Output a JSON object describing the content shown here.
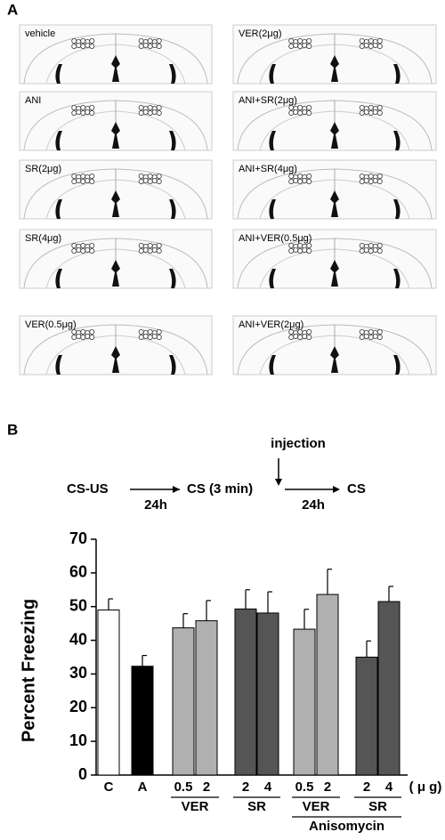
{
  "panel_a": {
    "label": "A",
    "sections": [
      "vehicle",
      "ANI",
      "SR(2μg)",
      "SR(4μg)",
      "VER(0.5μg)",
      "VER(2μg)",
      "ANI+SR(2μg)",
      "ANI+SR(4μg)",
      "ANI+VER(0.5μg)",
      "ANI+VER(2μg)"
    ]
  },
  "panel_b": {
    "label": "B",
    "timeline": {
      "start": "CS-US",
      "interval_1": "24h",
      "test_1": "CS (3 min)",
      "injection": "injection",
      "interval_2": "24h",
      "test_2": "CS"
    }
  },
  "chart_data": {
    "type": "bar",
    "y_label": "Percent Freezing",
    "unit_label": "( μ g)",
    "categories": [
      "C",
      "A",
      "0.5",
      "2",
      "2",
      "4",
      "0.5",
      "2",
      "2",
      "4"
    ],
    "values": [
      49,
      32.3,
      43.7,
      45.8,
      49.3,
      48.1,
      43.3,
      53.6,
      35,
      51.5
    ],
    "errors": [
      3.3,
      3.2,
      4.2,
      6,
      5.7,
      6.3,
      5.9,
      7.5,
      4.8,
      4.5
    ],
    "colors": [
      "#ffffff",
      "#000000",
      "#b0b0b0",
      "#b0b0b0",
      "#555555",
      "#555555",
      "#b0b0b0",
      "#b0b0b0",
      "#555555",
      "#555555"
    ],
    "groups": [
      "VER",
      "SR",
      "VER",
      "SR",
      "Anisomycin"
    ],
    "ylim": [
      0,
      70
    ],
    "yticks": [
      0,
      10,
      20,
      30,
      40,
      50,
      60,
      70
    ]
  }
}
